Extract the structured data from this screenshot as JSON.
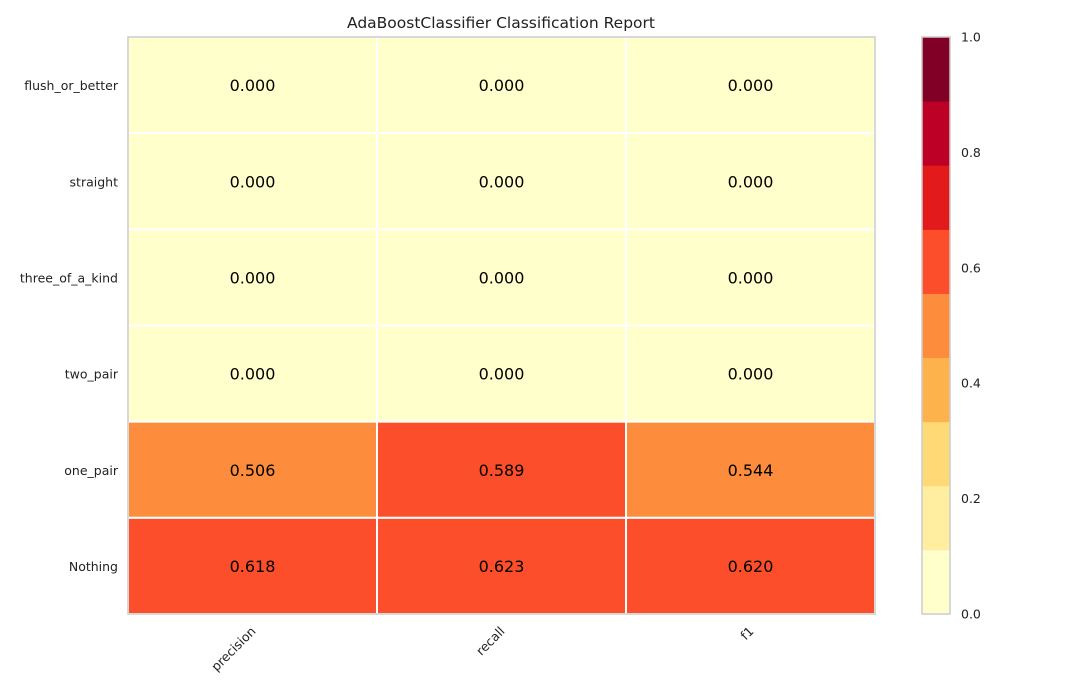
{
  "chart_data": {
    "type": "heatmap",
    "title": "AdaBoostClassifier Classification Report",
    "columns": [
      "precision",
      "recall",
      "f1"
    ],
    "rows": [
      "flush_or_better",
      "straight",
      "three_of_a_kind",
      "two_pair",
      "one_pair",
      "Nothing"
    ],
    "values": [
      [
        0.0,
        0.0,
        0.0
      ],
      [
        0.0,
        0.0,
        0.0
      ],
      [
        0.0,
        0.0,
        0.0
      ],
      [
        0.0,
        0.0,
        0.0
      ],
      [
        0.506,
        0.589,
        0.544
      ],
      [
        0.618,
        0.623,
        0.62
      ]
    ],
    "value_labels": [
      [
        "0.000",
        "0.000",
        "0.000"
      ],
      [
        "0.000",
        "0.000",
        "0.000"
      ],
      [
        "0.000",
        "0.000",
        "0.000"
      ],
      [
        "0.000",
        "0.000",
        "0.000"
      ],
      [
        "0.506",
        "0.589",
        "0.544"
      ],
      [
        "0.618",
        "0.623",
        "0.620"
      ]
    ],
    "colorbar": {
      "range": [
        0.0,
        1.0
      ],
      "ticks": [
        0.0,
        0.2,
        0.4,
        0.6,
        0.8,
        1.0
      ],
      "tick_labels": [
        "0.0",
        "0.2",
        "0.4",
        "0.6",
        "0.8",
        "1.0"
      ],
      "colors": [
        "#ffffcc",
        "#ffeda0",
        "#fed976",
        "#feb24c",
        "#fd8d3c",
        "#fc4e2a",
        "#e31a1c",
        "#bd0026",
        "#800026"
      ]
    },
    "grid": false,
    "colorbar_placement": "right"
  }
}
